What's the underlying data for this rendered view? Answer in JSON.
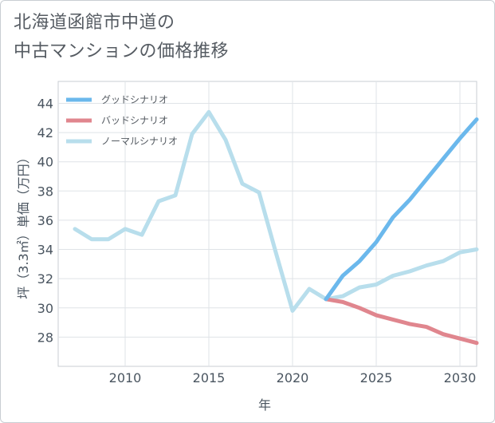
{
  "title_line1": "北海道函館市中道の",
  "title_line2": "中古マンションの価格推移",
  "chart_data": {
    "type": "line",
    "xlabel": "年",
    "ylabel": "坪（3.3㎡）単価（万円）",
    "xlim": [
      2006,
      2031
    ],
    "ylim": [
      26,
      45.5
    ],
    "xticks": [
      2010,
      2015,
      2020,
      2025,
      2030
    ],
    "yticks": [
      28,
      30,
      32,
      34,
      36,
      38,
      40,
      42,
      44
    ],
    "legend_position": "top-left",
    "series": [
      {
        "name": "グッドシナリオ",
        "color": "#6bb8ec",
        "x": [
          2022,
          2023,
          2024,
          2025,
          2026,
          2027,
          2028,
          2029,
          2030,
          2031
        ],
        "values": [
          30.6,
          32.2,
          33.2,
          34.5,
          36.2,
          37.4,
          38.8,
          40.2,
          41.6,
          42.9
        ]
      },
      {
        "name": "バッドシナリオ",
        "color": "#e0868e",
        "x": [
          2022,
          2023,
          2024,
          2025,
          2026,
          2027,
          2028,
          2029,
          2030,
          2031
        ],
        "values": [
          30.6,
          30.4,
          30.0,
          29.5,
          29.2,
          28.9,
          28.7,
          28.2,
          27.9,
          27.6
        ]
      },
      {
        "name": "ノーマルシナリオ",
        "color": "#b8deec",
        "x": [
          2007,
          2008,
          2009,
          2010,
          2011,
          2012,
          2013,
          2014,
          2015,
          2016,
          2017,
          2018,
          2019,
          2020,
          2021,
          2022,
          2023,
          2024,
          2025,
          2026,
          2027,
          2028,
          2029,
          2030,
          2031
        ],
        "values": [
          35.4,
          34.7,
          34.7,
          35.4,
          35.0,
          37.3,
          37.7,
          41.9,
          43.4,
          41.5,
          38.5,
          37.9,
          33.8,
          29.8,
          31.3,
          30.6,
          30.8,
          31.4,
          31.6,
          32.2,
          32.5,
          32.9,
          33.2,
          33.8,
          34.0
        ]
      }
    ]
  }
}
